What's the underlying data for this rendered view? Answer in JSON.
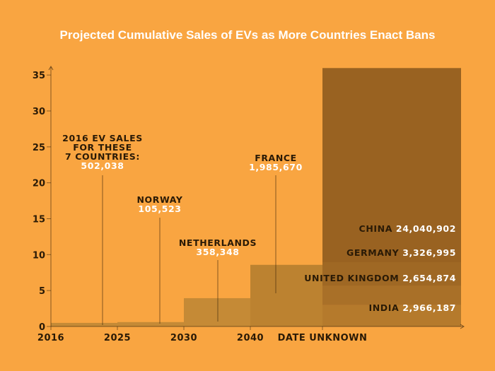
{
  "chart_data": {
    "type": "area",
    "title": "Projected Cumulative Sales of EVs as More Countries Enact Bans",
    "y_ticks": [
      "0",
      "5",
      "10",
      "15",
      "20",
      "25",
      "30",
      "35"
    ],
    "x_ticks": [
      "2016",
      "2025",
      "2030",
      "2040",
      "DATE UNKNOWN"
    ],
    "ylim": [
      0,
      36
    ],
    "grid": false,
    "steps": [
      {
        "from": "2016",
        "to": "2025",
        "value": 0.5
      },
      {
        "from": "2025",
        "to": "2030",
        "value": 0.61
      },
      {
        "from": "2030",
        "to": "2040",
        "value": 3.94
      },
      {
        "from": "2040",
        "to": "DATE UNKNOWN",
        "value": 8.58
      },
      {
        "from": "DATE UNKNOWN",
        "to": "end",
        "value": 35.97
      }
    ],
    "callouts": [
      {
        "label_lines": [
          "2016 EV SALES",
          "FOR THESE",
          "7 COUNTRIES:"
        ],
        "value": "502,038"
      },
      {
        "label_lines": [
          "NORWAY"
        ],
        "value": "105,523"
      },
      {
        "label_lines": [
          "NETHERLANDS"
        ],
        "value": "358,348"
      },
      {
        "label_lines": [
          "FRANCE"
        ],
        "value": "1,985,670"
      }
    ],
    "layers": [
      {
        "country": "INDIA",
        "value": "2,966,187",
        "amount": 2.97,
        "color": "#B57A2C"
      },
      {
        "country": "UNITED KINGDOM",
        "value": "2,654,874",
        "amount": 2.65,
        "color": "#A97028"
      },
      {
        "country": "GERMANY",
        "value": "3,326,995",
        "amount": 3.33,
        "color": "#9F6824"
      },
      {
        "country": "CHINA",
        "value": "24,040,902",
        "amount": 24.04,
        "color": "#996221"
      }
    ],
    "colors": {
      "background": "#F9A541",
      "text_dark": "#2A1A06",
      "text_light": "#FFFFFF",
      "step_fill": "#C58A36",
      "step_fill_late": "#BC8230"
    }
  }
}
